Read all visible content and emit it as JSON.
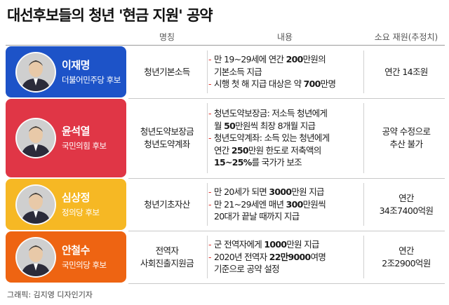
{
  "title": "대선후보들의 청년 '현금 지원' 공약",
  "header": {
    "name": "명칭",
    "content": "내용",
    "cost": "소요 재원(추정치)"
  },
  "rows": [
    {
      "candidate": "이재명",
      "party": "더불어민주당 후보",
      "color": "#1d53c8",
      "policy_lines": [
        "청년기본소득"
      ],
      "content": [
        {
          "bullet": "-",
          "parts": [
            "만 19~29세에 연간 ",
            "200",
            "만원의"
          ]
        },
        {
          "bullet": "",
          "parts": [
            "기본소득 지급",
            "",
            ""
          ]
        },
        {
          "bullet": "-",
          "parts": [
            "시행 첫 해 지급 대상은 약 ",
            "700",
            "만명"
          ]
        }
      ],
      "cost_lines": [
        "연간 14조원"
      ]
    },
    {
      "candidate": "윤석열",
      "party": "국민의힘 후보",
      "color": "#e03646",
      "policy_lines": [
        "청년도약보장금",
        "청년도약계좌"
      ],
      "content": [
        {
          "bullet": "-",
          "parts": [
            "청년도약보장금: 저소득 청년에게",
            "",
            ""
          ]
        },
        {
          "bullet": "",
          "parts": [
            "월 ",
            "50",
            "만원씩 최장 8개월 지급"
          ]
        },
        {
          "bullet": "-",
          "parts": [
            "청년도약계좌: 소득 있는 청년에게",
            "",
            ""
          ]
        },
        {
          "bullet": "",
          "parts": [
            "연간 ",
            "250",
            "만원 한도로 저축액의"
          ]
        },
        {
          "bullet": "",
          "parts": [
            "",
            "15~25%",
            "를 국가가 보조"
          ]
        }
      ],
      "cost_lines": [
        "공약 수정으로",
        "추산 불가"
      ]
    },
    {
      "candidate": "심상정",
      "party": "정의당 후보",
      "color": "#f6b824",
      "policy_lines": [
        "청년기초자산"
      ],
      "content": [
        {
          "bullet": "-",
          "parts": [
            "만 20세가 되면 ",
            "3000",
            "만원 지급"
          ]
        },
        {
          "bullet": "-",
          "parts": [
            "만 21~29세엔 매년 ",
            "300",
            "만원씩"
          ]
        },
        {
          "bullet": "",
          "parts": [
            "20대가 끝날 때까지 지급",
            "",
            ""
          ]
        }
      ],
      "cost_lines": [
        "연간",
        "34조7400억원"
      ]
    },
    {
      "candidate": "안철수",
      "party": "국민의당 후보",
      "color": "#ee6412",
      "policy_lines": [
        "전역자",
        "사회진출지원금"
      ],
      "content": [
        {
          "bullet": "-",
          "parts": [
            "군 전역자에게 ",
            "1000",
            "만원 지급"
          ]
        },
        {
          "bullet": "-",
          "parts": [
            "2020년 전역자 ",
            "22만9000",
            "여명"
          ]
        },
        {
          "bullet": "",
          "parts": [
            "기준으로 공약 설정",
            "",
            ""
          ]
        }
      ],
      "cost_lines": [
        "연간",
        "2조2900억원"
      ]
    }
  ],
  "credit": "그래픽: 김지영 디자인기자"
}
